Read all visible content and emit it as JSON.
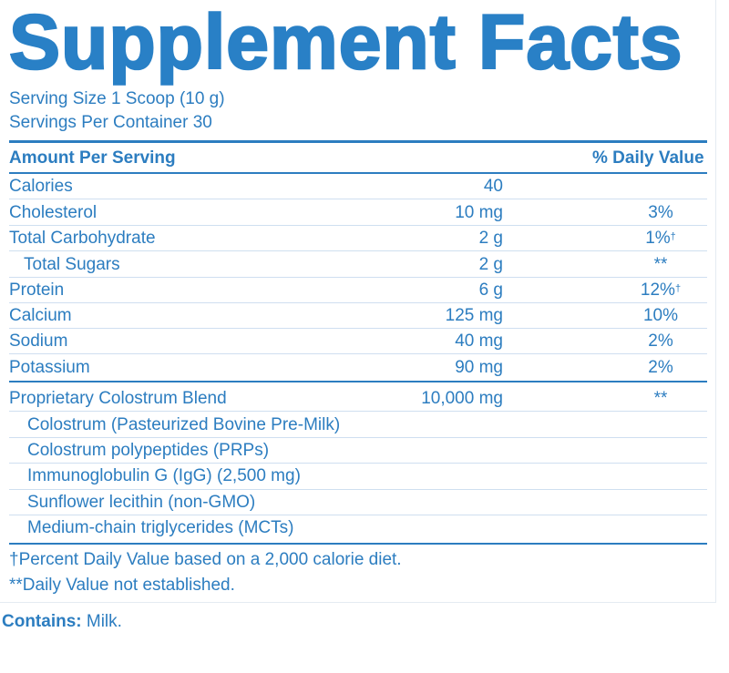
{
  "title": "Supplement Facts",
  "serving_size": "Serving Size 1 Scoop (10 g)",
  "servings_per_container": "Servings Per Container 30",
  "header": {
    "amount_label": "Amount Per Serving",
    "dv_label": "% Daily Value"
  },
  "nutrients": [
    {
      "name": "Calories",
      "amount": "40",
      "dv": "",
      "dv_mark": ""
    },
    {
      "name": "Cholesterol",
      "amount": "10 mg",
      "dv": "3%",
      "dv_mark": ""
    },
    {
      "name": "Total Carbohydrate",
      "amount": "2 g",
      "dv": "1%",
      "dv_mark": "†"
    },
    {
      "name": "Total Sugars",
      "amount": "2 g",
      "dv": "**",
      "dv_mark": ""
    },
    {
      "name": "Protein",
      "amount": "6 g",
      "dv": "12%",
      "dv_mark": "†"
    },
    {
      "name": "Calcium",
      "amount": "125 mg",
      "dv": "10%",
      "dv_mark": ""
    },
    {
      "name": "Sodium",
      "amount": "40 mg",
      "dv": "2%",
      "dv_mark": ""
    },
    {
      "name": "Potassium",
      "amount": "90 mg",
      "dv": "2%",
      "dv_mark": ""
    }
  ],
  "blend": {
    "name": "Proprietary Colostrum Blend",
    "amount": "10,000 mg",
    "dv": "**",
    "ingredients": [
      "Colostrum (Pasteurized Bovine Pre-Milk)",
      "Colostrum polypeptides (PRPs)",
      "Immunoglobulin G (IgG) (2,500 mg)",
      "Sunflower lecithin (non-GMO)",
      "Medium-chain triglycerides (MCTs)"
    ]
  },
  "footnotes": [
    "†Percent Daily Value based on a 2,000 calorie diet.",
    "**Daily Value not established."
  ],
  "contains": {
    "label": "Contains:",
    "value": " Milk."
  }
}
